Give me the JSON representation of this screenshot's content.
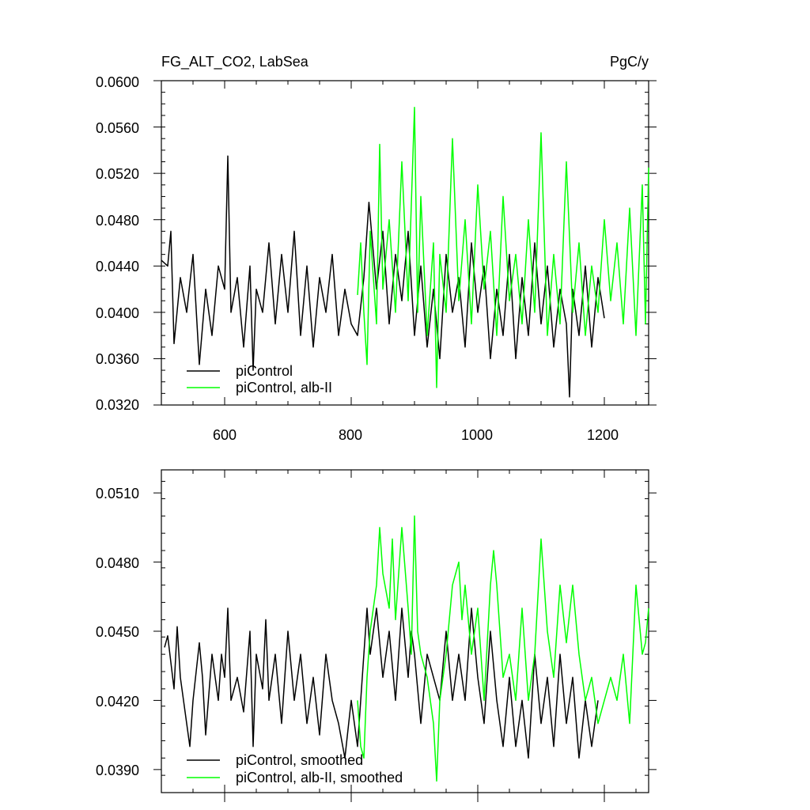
{
  "chart_data": [
    {
      "type": "line",
      "title": "FG_ALT_CO2, LabSea",
      "units": "PgC/y",
      "xlim": [
        500,
        1270
      ],
      "ylim": [
        0.032,
        0.06
      ],
      "x_ticks": [
        600,
        800,
        1000,
        1200
      ],
      "x_tick_labels": [
        "600",
        "800",
        "1000",
        "1200"
      ],
      "y_ticks": [
        0.032,
        0.036,
        0.04,
        0.044,
        0.048,
        0.052,
        0.056,
        0.06
      ],
      "y_tick_labels": [
        "0.0320",
        "0.0360",
        "0.0400",
        "0.0440",
        "0.0480",
        "0.0520",
        "0.0560",
        "0.0600"
      ],
      "legend_position": "bottom-left",
      "grid": false,
      "series": [
        {
          "name": "piControl",
          "color": "#000000",
          "x": [
            500,
            510,
            515,
            520,
            530,
            540,
            550,
            560,
            570,
            580,
            590,
            600,
            605,
            610,
            620,
            630,
            640,
            645,
            650,
            660,
            670,
            680,
            690,
            700,
            710,
            720,
            730,
            740,
            750,
            760,
            770,
            780,
            790,
            800,
            810,
            820,
            828,
            840,
            850,
            860,
            870,
            880,
            890,
            900,
            910,
            920,
            930,
            940,
            950,
            960,
            970,
            980,
            990,
            1000,
            1010,
            1020,
            1030,
            1040,
            1050,
            1060,
            1070,
            1080,
            1090,
            1100,
            1110,
            1120,
            1130,
            1140,
            1145,
            1150,
            1160,
            1170,
            1180,
            1190,
            1200
          ],
          "values": [
            0.0445,
            0.044,
            0.047,
            0.0373,
            0.043,
            0.04,
            0.045,
            0.0355,
            0.042,
            0.038,
            0.044,
            0.042,
            0.0535,
            0.04,
            0.043,
            0.037,
            0.044,
            0.035,
            0.042,
            0.04,
            0.046,
            0.039,
            0.045,
            0.04,
            0.047,
            0.038,
            0.044,
            0.037,
            0.043,
            0.04,
            0.045,
            0.038,
            0.042,
            0.039,
            0.038,
            0.043,
            0.0495,
            0.042,
            0.047,
            0.039,
            0.045,
            0.041,
            0.047,
            0.038,
            0.044,
            0.037,
            0.042,
            0.036,
            0.045,
            0.04,
            0.043,
            0.037,
            0.046,
            0.04,
            0.044,
            0.036,
            0.042,
            0.038,
            0.045,
            0.036,
            0.043,
            0.038,
            0.046,
            0.039,
            0.044,
            0.037,
            0.042,
            0.039,
            0.0327,
            0.042,
            0.038,
            0.044,
            0.037,
            0.043,
            0.0395
          ]
        },
        {
          "name": "piControl, alb-II",
          "color": "#00ff00",
          "x": [
            810,
            815,
            820,
            825,
            830,
            840,
            845,
            850,
            860,
            870,
            880,
            890,
            900,
            905,
            910,
            920,
            930,
            935,
            940,
            950,
            960,
            970,
            980,
            990,
            1000,
            1010,
            1020,
            1030,
            1040,
            1050,
            1060,
            1070,
            1080,
            1090,
            1100,
            1110,
            1120,
            1130,
            1140,
            1150,
            1160,
            1170,
            1180,
            1190,
            1200,
            1210,
            1220,
            1230,
            1240,
            1250,
            1260,
            1265,
            1270
          ],
          "values": [
            0.0415,
            0.046,
            0.04,
            0.0355,
            0.047,
            0.039,
            0.0545,
            0.042,
            0.048,
            0.04,
            0.053,
            0.041,
            0.0577,
            0.04,
            0.05,
            0.038,
            0.046,
            0.0335,
            0.045,
            0.04,
            0.055,
            0.041,
            0.048,
            0.039,
            0.051,
            0.042,
            0.047,
            0.038,
            0.05,
            0.041,
            0.045,
            0.039,
            0.048,
            0.04,
            0.0555,
            0.038,
            0.045,
            0.039,
            0.053,
            0.04,
            0.046,
            0.038,
            0.044,
            0.04,
            0.048,
            0.041,
            0.046,
            0.039,
            0.049,
            0.038,
            0.051,
            0.039,
            0.0525
          ]
        }
      ]
    },
    {
      "type": "line",
      "xlim": [
        500,
        1270
      ],
      "ylim": [
        0.038,
        0.052
      ],
      "x_ticks": [
        600,
        800,
        1000,
        1200
      ],
      "y_ticks": [
        0.039,
        0.042,
        0.045,
        0.048,
        0.051
      ],
      "y_tick_labels": [
        "0.0390",
        "0.0420",
        "0.0450",
        "0.0480",
        "0.0510"
      ],
      "legend_position": "bottom-left",
      "grid": false,
      "series": [
        {
          "name": "piControl, smoothed",
          "color": "#000000",
          "x": [
            505,
            510,
            520,
            525,
            530,
            540,
            545,
            550,
            560,
            565,
            570,
            580,
            590,
            595,
            600,
            605,
            610,
            620,
            630,
            640,
            645,
            650,
            660,
            665,
            670,
            680,
            690,
            700,
            710,
            720,
            730,
            740,
            750,
            760,
            770,
            780,
            790,
            800,
            810,
            820,
            825,
            830,
            840,
            850,
            860,
            870,
            880,
            890,
            895,
            900,
            910,
            920,
            930,
            940,
            950,
            960,
            970,
            980,
            990,
            1000,
            1010,
            1020,
            1030,
            1040,
            1050,
            1060,
            1070,
            1080,
            1090,
            1100,
            1110,
            1120,
            1130,
            1140,
            1150,
            1160,
            1170,
            1180,
            1190
          ],
          "values": [
            0.0443,
            0.0448,
            0.0425,
            0.0452,
            0.043,
            0.041,
            0.04,
            0.042,
            0.0445,
            0.043,
            0.0405,
            0.044,
            0.042,
            0.044,
            0.043,
            0.046,
            0.042,
            0.043,
            0.0415,
            0.045,
            0.04,
            0.044,
            0.0425,
            0.0455,
            0.042,
            0.044,
            0.041,
            0.045,
            0.042,
            0.044,
            0.041,
            0.043,
            0.0405,
            0.044,
            0.042,
            0.041,
            0.0395,
            0.042,
            0.04,
            0.044,
            0.046,
            0.044,
            0.046,
            0.043,
            0.045,
            0.042,
            0.046,
            0.043,
            0.045,
            0.044,
            0.041,
            0.044,
            0.043,
            0.042,
            0.045,
            0.042,
            0.044,
            0.042,
            0.046,
            0.043,
            0.041,
            0.045,
            0.042,
            0.04,
            0.043,
            0.04,
            0.042,
            0.0395,
            0.044,
            0.041,
            0.043,
            0.04,
            0.044,
            0.041,
            0.043,
            0.0395,
            0.042,
            0.04,
            0.042
          ]
        },
        {
          "name": "piControl, alb-II, smoothed",
          "color": "#00ff00",
          "x": [
            810,
            815,
            820,
            825,
            830,
            840,
            845,
            850,
            860,
            865,
            870,
            880,
            890,
            895,
            900,
            905,
            910,
            920,
            930,
            935,
            940,
            950,
            960,
            970,
            975,
            980,
            990,
            1000,
            1010,
            1020,
            1025,
            1030,
            1040,
            1050,
            1060,
            1070,
            1080,
            1090,
            1100,
            1105,
            1110,
            1120,
            1130,
            1140,
            1150,
            1160,
            1170,
            1180,
            1190,
            1200,
            1210,
            1220,
            1230,
            1240,
            1250,
            1260,
            1265,
            1270
          ],
          "values": [
            0.042,
            0.04,
            0.0395,
            0.043,
            0.045,
            0.047,
            0.0495,
            0.0475,
            0.046,
            0.049,
            0.0455,
            0.0495,
            0.046,
            0.044,
            0.05,
            0.045,
            0.044,
            0.043,
            0.041,
            0.0385,
            0.042,
            0.044,
            0.047,
            0.048,
            0.0455,
            0.047,
            0.044,
            0.046,
            0.042,
            0.047,
            0.0485,
            0.047,
            0.043,
            0.044,
            0.042,
            0.046,
            0.042,
            0.044,
            0.049,
            0.047,
            0.045,
            0.043,
            0.047,
            0.0445,
            0.047,
            0.044,
            0.042,
            0.043,
            0.041,
            0.042,
            0.043,
            0.042,
            0.044,
            0.041,
            0.047,
            0.044,
            0.0445,
            0.046
          ]
        }
      ]
    }
  ]
}
